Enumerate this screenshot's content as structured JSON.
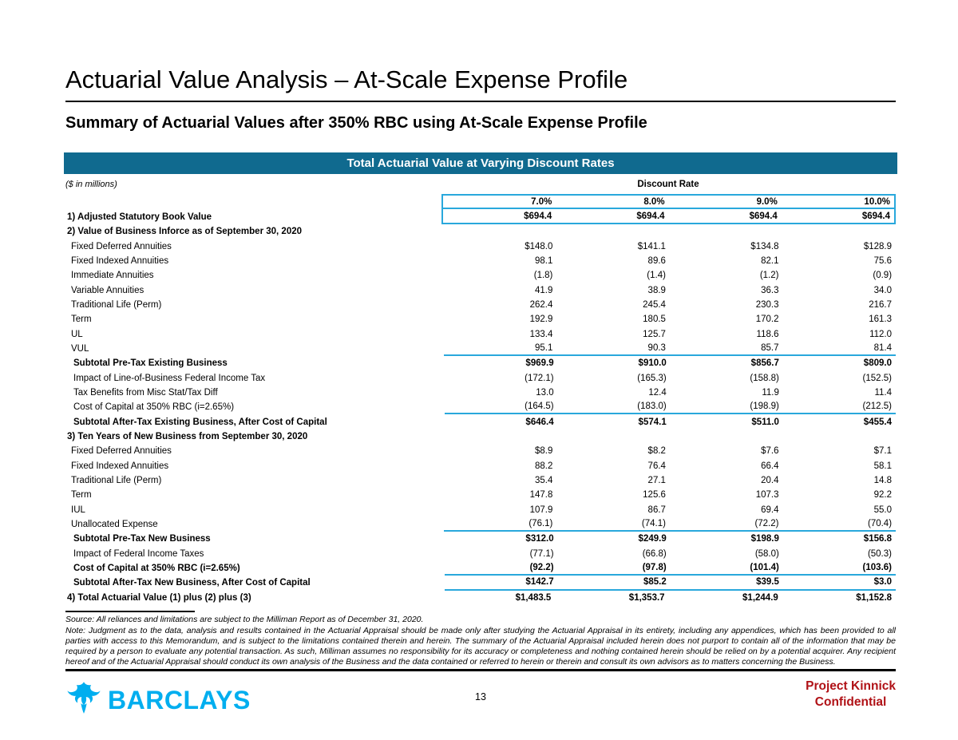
{
  "page": {
    "title": "Actuarial Value Analysis – At-Scale Expense Profile",
    "subtitle": "Summary of Actuarial Values after 350% RBC using At-Scale Expense Profile",
    "page_number": "13"
  },
  "table": {
    "banner": "Total Actuarial Value at Varying Discount Rates",
    "units_label": "($ in millions)",
    "column_group": "Discount Rate",
    "columns": [
      "7.0%",
      "8.0%",
      "9.0%",
      "10.0%"
    ],
    "header_row": {
      "label": "1) Adjusted Statutory Book Value",
      "values": [
        "$694.4",
        "$694.4",
        "$694.4",
        "$694.4"
      ]
    },
    "rows": [
      {
        "label": "2) Value of Business Inforce as of September 30, 2020",
        "bold": true,
        "indent": 0,
        "values": null
      },
      {
        "label": "Fixed Deferred Annuities",
        "bold": false,
        "indent": 1,
        "values": [
          "$148.0",
          "$141.1",
          "$134.8",
          "$128.9"
        ]
      },
      {
        "label": "Fixed Indexed Annuities",
        "bold": false,
        "indent": 1,
        "values": [
          "98.1",
          "89.6",
          "82.1",
          "75.6"
        ]
      },
      {
        "label": "Immediate Annuities",
        "bold": false,
        "indent": 1,
        "values": [
          "(1.8)",
          "(1.4)",
          "(1.2)",
          "(0.9)"
        ]
      },
      {
        "label": "Variable Annuities",
        "bold": false,
        "indent": 1,
        "values": [
          "41.9",
          "38.9",
          "36.3",
          "34.0"
        ]
      },
      {
        "label": "Traditional Life (Perm)",
        "bold": false,
        "indent": 1,
        "values": [
          "262.4",
          "245.4",
          "230.3",
          "216.7"
        ]
      },
      {
        "label": "Term",
        "bold": false,
        "indent": 1,
        "values": [
          "192.9",
          "180.5",
          "170.2",
          "161.3"
        ]
      },
      {
        "label": "UL",
        "bold": false,
        "indent": 1,
        "values": [
          "133.4",
          "125.7",
          "118.6",
          "112.0"
        ]
      },
      {
        "label": "VUL",
        "bold": false,
        "indent": 1,
        "values": [
          "95.1",
          "90.3",
          "85.7",
          "81.4"
        ],
        "rule": true
      },
      {
        "label": "Subtotal Pre-Tax Existing Business",
        "bold": true,
        "indent": 2,
        "values": [
          "$969.9",
          "$910.0",
          "$856.7",
          "$809.0"
        ]
      },
      {
        "label": "Impact of Line-of-Business Federal Income Tax",
        "bold": false,
        "indent": 2,
        "values": [
          "(172.1)",
          "(165.3)",
          "(158.8)",
          "(152.5)"
        ]
      },
      {
        "label": "Tax Benefits from Misc Stat/Tax Diff",
        "bold": false,
        "indent": 2,
        "values": [
          "13.0",
          "12.4",
          "11.9",
          "11.4"
        ]
      },
      {
        "label": "Cost of Capital at 350% RBC (i=2.65%)",
        "bold": false,
        "indent": 2,
        "values": [
          "(164.5)",
          "(183.0)",
          "(198.9)",
          "(212.5)"
        ],
        "rule": true
      },
      {
        "label": "Subtotal After-Tax Existing Business, After Cost of Capital",
        "bold": true,
        "indent": 2,
        "values": [
          "$646.4",
          "$574.1",
          "$511.0",
          "$455.4"
        ]
      },
      {
        "label": "3) Ten Years of New Business from September 30, 2020",
        "bold": true,
        "indent": 0,
        "values": null
      },
      {
        "label": "Fixed Deferred Annuities",
        "bold": false,
        "indent": 1,
        "values": [
          "$8.9",
          "$8.2",
          "$7.6",
          "$7.1"
        ]
      },
      {
        "label": "Fixed Indexed Annuities",
        "bold": false,
        "indent": 1,
        "values": [
          "88.2",
          "76.4",
          "66.4",
          "58.1"
        ]
      },
      {
        "label": "Traditional Life (Perm)",
        "bold": false,
        "indent": 1,
        "values": [
          "35.4",
          "27.1",
          "20.4",
          "14.8"
        ]
      },
      {
        "label": "Term",
        "bold": false,
        "indent": 1,
        "values": [
          "147.8",
          "125.6",
          "107.3",
          "92.2"
        ]
      },
      {
        "label": "IUL",
        "bold": false,
        "indent": 1,
        "values": [
          "107.9",
          "86.7",
          "69.4",
          "55.0"
        ]
      },
      {
        "label": "Unallocated Expense",
        "bold": false,
        "indent": 1,
        "values": [
          "(76.1)",
          "(74.1)",
          "(72.2)",
          "(70.4)"
        ],
        "rule": true
      },
      {
        "label": "Subtotal Pre-Tax New Business",
        "bold": true,
        "indent": 2,
        "values": [
          "$312.0",
          "$249.9",
          "$198.9",
          "$156.8"
        ]
      },
      {
        "label": "Impact of Federal Income Taxes",
        "bold": false,
        "indent": 2,
        "values": [
          "(77.1)",
          "(66.8)",
          "(58.0)",
          "(50.3)"
        ]
      },
      {
        "label": "Cost of Capital at 350% RBC (i=2.65%)",
        "bold": true,
        "indent": 2,
        "values": [
          "(92.2)",
          "(97.8)",
          "(101.4)",
          "(103.6)"
        ],
        "rule": true
      },
      {
        "label": "Subtotal After-Tax New Business, After Cost of Capital",
        "bold": true,
        "indent": 2,
        "values": [
          "$142.7",
          "$85.2",
          "$39.5",
          "$3.0"
        ],
        "rule": true
      },
      {
        "label": "4) Total Actuarial Value (1) plus (2) plus (3)",
        "bold": true,
        "indent": 0,
        "values": [
          "$1,483.5",
          "$1,353.7",
          "$1,244.9",
          "$1,152.8"
        ]
      }
    ]
  },
  "footnotes": {
    "source": "Source: All reliances and limitations are subject to the Milliman Report as of December 31, 2020.",
    "note": "Note: Judgment as to the data, analysis and results contained in the Actuarial Appraisal should be made only after studying the Actuarial Appraisal in its entirety, including any appendices, which has been provided to all parties with access to this Memorandum, and is subject to the limitations contained therein and herein. The summary of the Actuarial Appraisal included herein does not purport to contain all of the information that may be required by a person to evaluate any potential transaction. As such, Milliman assumes no responsibility for its accuracy or completeness and nothing contained herein should be relied on by a potential acquirer. Any recipient hereof and of the Actuarial Appraisal should conduct its own analysis of the Business and the data contained or referred to herein or therein and consult its own advisors as to matters concerning the Business."
  },
  "footer": {
    "brand": "BARCLAYS",
    "project": "Project Kinnick",
    "classification": "Confidential"
  },
  "colors": {
    "band_teal": "#106A8F",
    "accent_cyan": "#29A8DC",
    "barclays_blue": "#00AEEF",
    "confidential_red": "#B01116"
  }
}
